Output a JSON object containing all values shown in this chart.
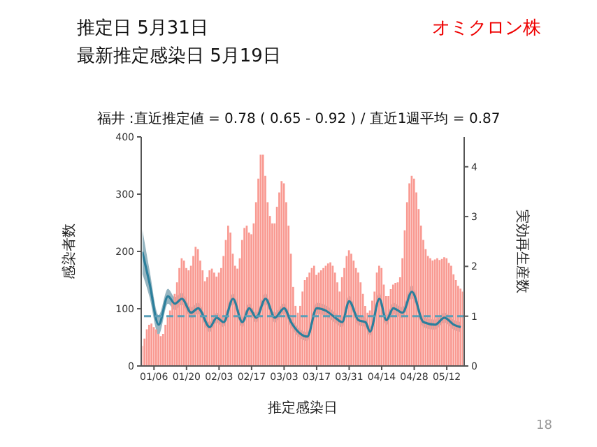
{
  "chart_data": {
    "type": "bar",
    "title": "福井 :直近推定値 = 0.78 ( 0.65 - 0.92 ) / 直近1週平均 = 0.87",
    "xlabel": "推定感染日",
    "ylabel": "感染者数",
    "y2label": "実効再生産数",
    "annotations": [
      "推定日  5月31日",
      "最新推定感染日  5月19日",
      "オミクロン株",
      "18"
    ],
    "x": [
      "--01-01",
      "--01-02",
      "--01-03",
      "--01-04",
      "--01-05",
      "--01-06",
      "--01-07",
      "--01-08",
      "--01-09",
      "--01-10",
      "--01-11",
      "--01-12",
      "--01-13",
      "--01-14",
      "--01-15",
      "--01-16",
      "--01-17",
      "--01-18",
      "--01-19",
      "--01-20",
      "--01-21",
      "--01-22",
      "--01-23",
      "--01-24",
      "--01-25",
      "--01-26",
      "--01-27",
      "--01-28",
      "--01-29",
      "--01-30",
      "--01-31",
      "--02-01",
      "--02-02",
      "--02-03",
      "--02-04",
      "--02-05",
      "--02-06",
      "--02-07",
      "--02-08",
      "--02-09",
      "--02-10",
      "--02-11",
      "--02-12",
      "--02-13",
      "--02-14",
      "--02-15",
      "--02-16",
      "--02-17",
      "--02-18",
      "--02-19",
      "--02-20",
      "--02-21",
      "--02-22",
      "--02-23",
      "--02-24",
      "--02-25",
      "--02-26",
      "--02-27",
      "--02-28",
      "--03-01",
      "--03-02",
      "--03-03",
      "--03-04",
      "--03-05",
      "--03-06",
      "--03-07",
      "--03-08",
      "--03-09",
      "--03-10",
      "--03-11",
      "--03-12",
      "--03-13",
      "--03-14",
      "--03-15",
      "--03-16",
      "--03-17",
      "--03-18",
      "--03-19",
      "--03-20",
      "--03-21",
      "--03-22",
      "--03-23",
      "--03-24",
      "--03-25",
      "--03-26",
      "--03-27",
      "--03-28",
      "--03-29",
      "--03-30",
      "--03-31",
      "--04-01",
      "--04-02",
      "--04-03",
      "--04-04",
      "--04-05",
      "--04-06",
      "--04-07",
      "--04-08",
      "--04-09",
      "--04-10",
      "--04-11",
      "--04-12",
      "--04-13",
      "--04-14",
      "--04-15",
      "--04-16",
      "--04-17",
      "--04-18",
      "--04-19",
      "--04-20",
      "--04-21",
      "--04-22",
      "--04-23",
      "--04-24",
      "--04-25",
      "--04-26",
      "--04-27",
      "--04-28",
      "--04-29",
      "--04-30",
      "--05-01",
      "--05-02",
      "--05-03",
      "--05-04",
      "--05-05",
      "--05-06",
      "--05-07",
      "--05-08",
      "--05-09",
      "--05-10",
      "--05-11",
      "--05-12",
      "--05-13",
      "--05-14",
      "--05-15",
      "--05-16",
      "--05-17",
      "--05-18",
      "--05-19"
    ],
    "series": [
      {
        "color": "#f99a92",
        "values": [
          35,
          48,
          64,
          72,
          74,
          68,
          64,
          56,
          52,
          56,
          72,
          85,
          97,
          114,
          126,
          146,
          171,
          188,
          184,
          171,
          167,
          175,
          192,
          208,
          204,
          184,
          167,
          148,
          155,
          167,
          170,
          163,
          156,
          163,
          171,
          192,
          220,
          245,
          233,
          196,
          175,
          170,
          188,
          220,
          241,
          245,
          233,
          230,
          249,
          286,
          327,
          369,
          369,
          332,
          286,
          262,
          249,
          249,
          278,
          303,
          323,
          319,
          286,
          245,
          196,
          138,
          105,
          93,
          105,
          130,
          150,
          155,
          163,
          171,
          175,
          159,
          163,
          167,
          171,
          175,
          179,
          181,
          175,
          163,
          146,
          130,
          155,
          171,
          192,
          202,
          196,
          184,
          171,
          163,
          146,
          126,
          105,
          93,
          97,
          114,
          130,
          163,
          175,
          171,
          142,
          122,
          122,
          134,
          142,
          145,
          146,
          155,
          188,
          237,
          286,
          319,
          332,
          327,
          303,
          274,
          245,
          220,
          204,
          192,
          188,
          184,
          186,
          188,
          185,
          187,
          190,
          188,
          180,
          175,
          160,
          150,
          140,
          135,
          130
        ]
      },
      {
        "type": "line",
        "axis": "y2",
        "color": "#2b7f9c",
        "x": [
          "--01-01",
          "--01-04",
          "--01-08",
          "--01-12",
          "--01-15",
          "--01-18",
          "--01-22",
          "--01-25",
          "--01-30",
          "--02-02",
          "--02-05",
          "--02-09",
          "--02-13",
          "--02-16",
          "--02-19",
          "--02-23",
          "--02-27",
          "--03-03",
          "--03-06",
          "--03-09",
          "--03-13",
          "--03-17",
          "--03-21",
          "--03-25",
          "--03-28",
          "--03-31",
          "--04-04",
          "--04-07",
          "--04-09",
          "--04-13",
          "--04-16",
          "--04-19",
          "--04-23",
          "--04-27",
          "--05-02",
          "--05-07",
          "--05-11",
          "--05-15",
          "--05-18"
        ],
        "values": [
          2.29,
          1.68,
          0.83,
          1.4,
          1.25,
          1.35,
          1.07,
          1.16,
          0.78,
          0.97,
          0.88,
          1.35,
          0.88,
          1.16,
          0.97,
          1.35,
          0.97,
          1.16,
          0.88,
          0.69,
          0.59,
          1.16,
          1.11,
          0.97,
          0.88,
          1.3,
          0.92,
          0.88,
          0.69,
          1.35,
          0.92,
          1.16,
          1.07,
          1.49,
          0.88,
          0.83,
          0.97,
          0.83,
          0.78
        ],
        "lower": [
          1.85,
          1.4,
          0.62,
          1.25,
          1.12,
          1.23,
          0.96,
          1.05,
          0.68,
          0.87,
          0.78,
          1.24,
          0.78,
          1.06,
          0.87,
          1.24,
          0.87,
          1.06,
          0.78,
          0.6,
          0.5,
          1.05,
          1.0,
          0.87,
          0.78,
          1.19,
          0.82,
          0.78,
          0.6,
          1.23,
          0.82,
          1.05,
          0.96,
          1.36,
          0.78,
          0.73,
          0.87,
          0.73,
          0.68
        ],
        "upper": [
          2.75,
          1.95,
          1.02,
          1.55,
          1.38,
          1.47,
          1.18,
          1.27,
          0.88,
          1.07,
          0.98,
          1.46,
          0.98,
          1.26,
          1.07,
          1.46,
          1.07,
          1.26,
          0.98,
          0.78,
          0.68,
          1.27,
          1.22,
          1.07,
          0.98,
          1.41,
          1.02,
          0.98,
          0.78,
          1.47,
          1.02,
          1.27,
          1.18,
          1.62,
          0.98,
          0.93,
          1.07,
          0.93,
          0.88
        ]
      }
    ],
    "xlim": [
      "--01-01",
      "--05-19"
    ],
    "xticks": [
      {
        "value": "--01-06",
        "label": "01/06"
      },
      {
        "value": "--01-20",
        "label": "01/20"
      },
      {
        "value": "--02-03",
        "label": "02/03"
      },
      {
        "value": "--02-17",
        "label": "02/17"
      },
      {
        "value": "--03-03",
        "label": "03/03"
      },
      {
        "value": "--03-17",
        "label": "03/17"
      },
      {
        "value": "--03-31",
        "label": "03/31"
      },
      {
        "value": "--04-14",
        "label": "04/14"
      },
      {
        "value": "--04-28",
        "label": "04/28"
      },
      {
        "value": "--05-12",
        "label": "05/12"
      }
    ],
    "ylim": [
      0,
      400
    ],
    "yticks": [
      0,
      100,
      200,
      300,
      400
    ],
    "y2lim": [
      0,
      4.6
    ],
    "y2ticks": [
      0,
      1,
      2,
      3,
      4
    ],
    "ref_lines": [
      {
        "axis": "y2",
        "value": 1,
        "color": "#5a9fb8",
        "line_style": "dashed"
      }
    ],
    "grid": false
  }
}
